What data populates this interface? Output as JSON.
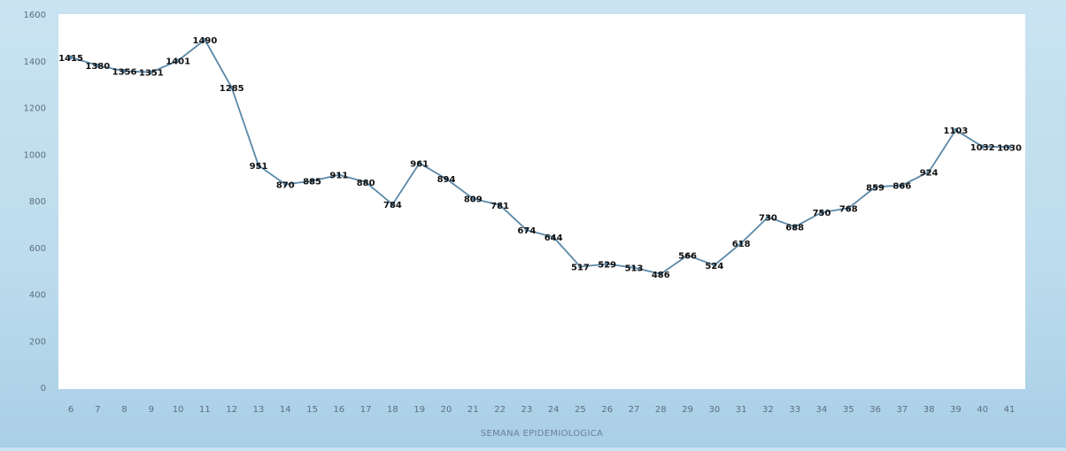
{
  "chart_data": {
    "type": "line",
    "title": "",
    "xlabel": "SEMANA EPIDEMIOLOGICA",
    "ylabel": "",
    "ylim": [
      0,
      1600
    ],
    "yticks": [
      0,
      200,
      400,
      600,
      800,
      1000,
      1200,
      1400,
      1600
    ],
    "grid": false,
    "legend": "none",
    "x": [
      6,
      7,
      8,
      9,
      10,
      11,
      12,
      13,
      14,
      15,
      16,
      17,
      18,
      19,
      20,
      21,
      22,
      23,
      24,
      25,
      26,
      27,
      28,
      29,
      30,
      31,
      32,
      33,
      34,
      35,
      36,
      37,
      38,
      39,
      40,
      41
    ],
    "series": [
      {
        "values": [
          1415,
          1380,
          1356,
          1351,
          1401,
          1490,
          1285,
          951,
          870,
          885,
          911,
          880,
          784,
          961,
          894,
          809,
          781,
          674,
          644,
          517,
          529,
          513,
          486,
          566,
          524,
          618,
          730,
          688,
          750,
          768,
          859,
          866,
          924,
          1103,
          1032,
          1030
        ],
        "color": "#5a88a8"
      }
    ]
  }
}
